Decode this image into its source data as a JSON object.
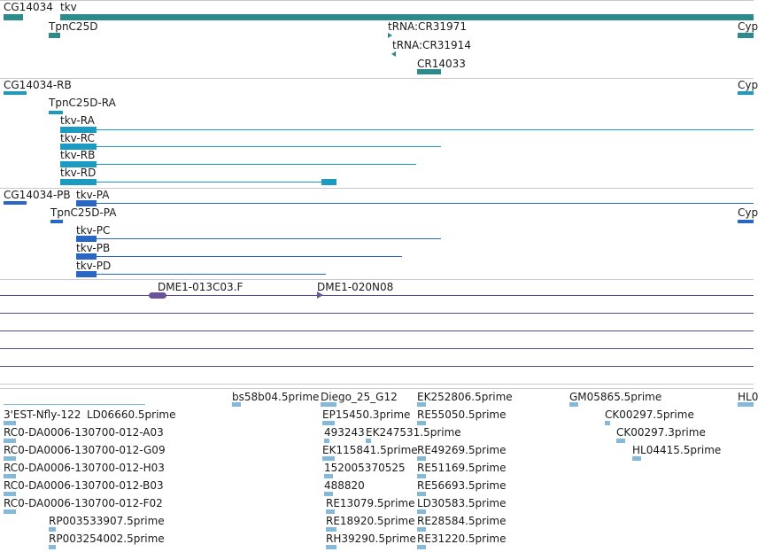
{
  "colors": {
    "gene": "#2e8b8b",
    "transcript": "#1b9bc2",
    "cds": "#2a66c4",
    "clone": "#6a5497",
    "est": "#84b9d9",
    "separator_gray": "#c9c9c9",
    "separator_purple": "#5a4a8a"
  },
  "labels": {
    "genes": [
      "CG14034",
      "tkv",
      "TpnC25D",
      "tRNA:CR31971",
      "tRNA:CR31914",
      "CR14033",
      "Cyp"
    ],
    "transcripts": [
      "CG14034-RB",
      "TpnC25D-RA",
      "tkv-RA",
      "tkv-RC",
      "tkv-RB",
      "tkv-RD",
      "Cyp"
    ],
    "proteins": [
      "CG14034-PB",
      "tkv-PA",
      "TpnC25D-PA",
      "tkv-PC",
      "tkv-PB",
      "tkv-PD",
      "Cyp"
    ],
    "clones": [
      "DME1-013C03.F",
      "DME1-020N08"
    ],
    "ests": [
      "bs58b04.5prime",
      "Diego_25_G12",
      "EK252806.5prime",
      "GM05865.5prime",
      "HL0",
      "3'EST-Nfly-122",
      "LD06660.5prime",
      "EP15450.3prime",
      "RE55050.5prime",
      "CK00297.5prime",
      "RC0-DA0006-130700-012-A03",
      "493243",
      "EK247531.5prime",
      "CK00297.3prime",
      "RC0-DA0006-130700-012-G09",
      "EK115841.5prime",
      "RE49269.5prime",
      "HL04415.5prime",
      "RC0-DA0006-130700-012-H03",
      "152005370525",
      "RE51169.5prime",
      "RC0-DA0006-130700-012-B03",
      "488820",
      "RE56693.5prime",
      "RC0-DA0006-130700-012-F02",
      "RE13079.5prime",
      "LD30583.5prime",
      "RP003533907.5prime",
      "RE18920.5prime",
      "RE28584.5prime",
      "RP003254002.5prime",
      "RH39290.5prime",
      "RE31220.5prime"
    ]
  }
}
